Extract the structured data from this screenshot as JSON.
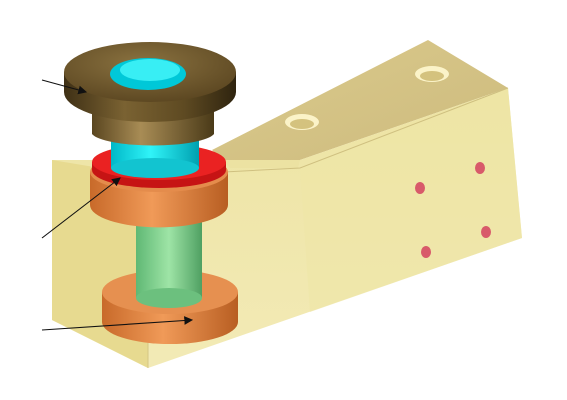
{
  "figure": {
    "background": "#ffffff",
    "parts": [
      {
        "id": "housing-block",
        "color": "#ebdf9a",
        "transparent": true
      },
      {
        "id": "top-flange",
        "color": "#6b5527"
      },
      {
        "id": "flange-neck",
        "color": "#7b653a"
      },
      {
        "id": "cyan-bushing",
        "color": "#00d8e0"
      },
      {
        "id": "red-seal-ring",
        "color": "#e21c1c"
      },
      {
        "id": "orange-collar-upper",
        "color": "#e88a42"
      },
      {
        "id": "green-shaft",
        "color": "#7fd08a"
      },
      {
        "id": "orange-collar-lower",
        "color": "#e88a42"
      }
    ],
    "top_face_holes": 2,
    "side_face_holes": 4,
    "leader_arrows": 3
  }
}
